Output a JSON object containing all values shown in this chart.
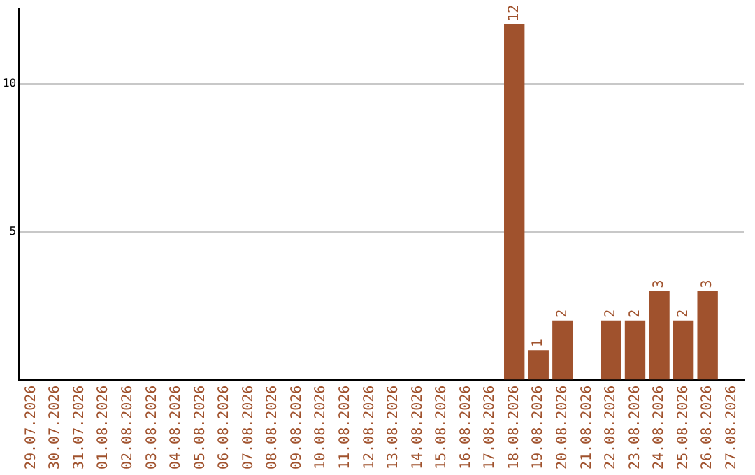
{
  "chart_data": {
    "type": "bar",
    "categories": [
      "29.07.2026",
      "30.07.2026",
      "31.07.2026",
      "01.08.2026",
      "02.08.2026",
      "03.08.2026",
      "04.08.2026",
      "05.08.2026",
      "06.08.2026",
      "07.08.2026",
      "08.08.2026",
      "09.08.2026",
      "10.08.2026",
      "11.08.2026",
      "12.08.2026",
      "13.08.2026",
      "14.08.2026",
      "15.08.2026",
      "16.08.2026",
      "17.08.2026",
      "18.08.2026",
      "19.08.2026",
      "20.08.2026",
      "21.08.2026",
      "22.08.2026",
      "23.08.2026",
      "24.08.2026",
      "25.08.2026",
      "26.08.2026",
      "27.08.2026"
    ],
    "values": [
      0,
      0,
      0,
      0,
      0,
      0,
      0,
      0,
      0,
      0,
      0,
      0,
      0,
      0,
      0,
      0,
      0,
      0,
      0,
      0,
      12,
      1,
      2,
      0,
      2,
      2,
      3,
      2,
      3,
      0
    ],
    "value_labels": [
      null,
      null,
      null,
      null,
      null,
      null,
      null,
      null,
      null,
      null,
      null,
      null,
      null,
      null,
      null,
      null,
      null,
      null,
      null,
      null,
      "12",
      "1",
      "2",
      null,
      "2",
      "2",
      "3",
      "2",
      "3",
      null
    ],
    "color": "#a0522d",
    "ylim": [
      0,
      12.5
    ],
    "yticks": [
      5,
      10
    ],
    "grid": "y",
    "legend": false
  }
}
